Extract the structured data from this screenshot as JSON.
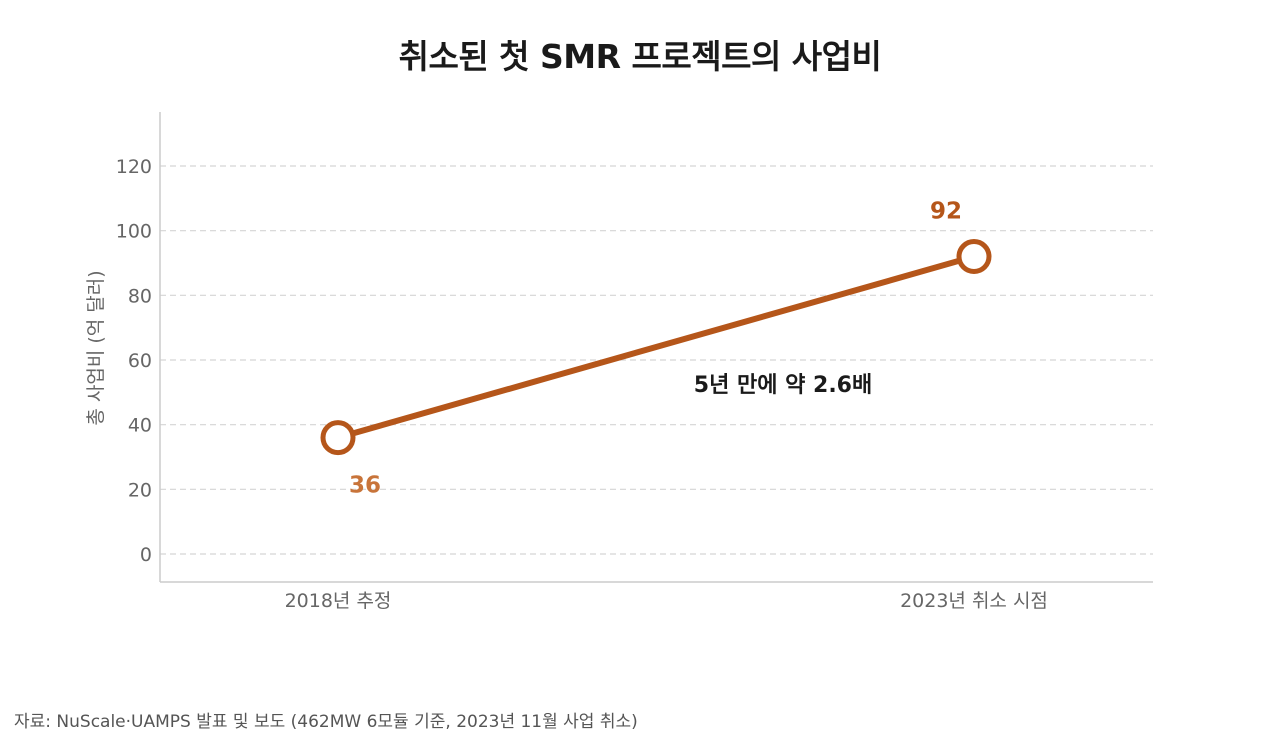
{
  "chart_data": {
    "type": "line",
    "title": "취소된 첫 SMR 프로젝트의 사업비",
    "ylabel": "총 사업비 (억 달러)",
    "xlabel": "",
    "categories": [
      "2018년 추정",
      "2023년 취소 시점"
    ],
    "series": [
      {
        "values": [
          36,
          92
        ],
        "color": "#b5561a"
      }
    ],
    "data_labels": [
      "36",
      "92"
    ],
    "annotation": "5년 만에 약 2.6배",
    "ylim": [
      0,
      120
    ],
    "yticks": [
      0,
      20,
      40,
      60,
      80,
      100,
      120
    ],
    "grid": true,
    "colors": {
      "line": "#b5561a",
      "label": "#c8743a",
      "label_dark": "#b5561a",
      "grid": "#d5d5d5",
      "axis": "#cccccc",
      "tick_text": "#666666"
    }
  },
  "source": "자료: NuScale·UAMPS 발표 및 보도 (462MW 6모듈 기준, 2023년 11월 사업 취소)"
}
